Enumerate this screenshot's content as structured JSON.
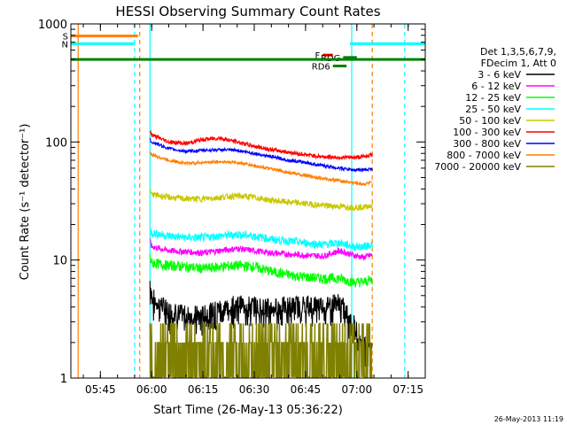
{
  "chart_data": {
    "type": "line",
    "title": "HESSI Observing Summary Count Rates",
    "xlabel": "Start Time (26-May-13 05:36:22)",
    "ylabel": "Count Rate (s⁻¹ detector⁻¹)",
    "yscale": "log",
    "ylim": [
      1,
      1000
    ],
    "xlim": [
      "05:36:22",
      "07:20:00"
    ],
    "x_ticks": [
      "05:45",
      "06:00",
      "06:15",
      "06:30",
      "06:45",
      "07:00",
      "07:15"
    ],
    "y_ticks": [
      "1",
      "10",
      "100",
      "1000"
    ],
    "timestamp": "26-May-2013 11:19",
    "legend": {
      "placement": "right",
      "header": [
        "Det 1,3,5,6,7,9,",
        "FDecim 1, Att 0"
      ]
    },
    "data_start": "05:59:30",
    "data_end": "07:04:30",
    "series": [
      {
        "name": "3 - 6 keV",
        "color": "#000000",
        "times": [
          "05:59:30",
          "06:00",
          "06:05",
          "06:10",
          "06:15",
          "06:20",
          "06:25",
          "06:30",
          "06:35",
          "06:40",
          "06:45",
          "06:50",
          "06:55",
          "06:59",
          "07:02",
          "07:04"
        ],
        "values": [
          6.5,
          5.0,
          3.8,
          3.5,
          3.5,
          4.0,
          4.3,
          4.2,
          4.0,
          4.2,
          4.3,
          4.3,
          4.5,
          3.0,
          2.0,
          2.0
        ]
      },
      {
        "name": "6 - 12 keV",
        "color": "#ff00ff",
        "times": [
          "05:59:30",
          "06:00",
          "06:05",
          "06:10",
          "06:15",
          "06:20",
          "06:25",
          "06:30",
          "06:35",
          "06:40",
          "06:45",
          "06:50",
          "06:55",
          "06:59",
          "07:02",
          "07:04"
        ],
        "values": [
          14.5,
          13.0,
          12.0,
          11.8,
          11.5,
          12.0,
          12.5,
          12.0,
          11.5,
          11.2,
          11.0,
          10.8,
          12.0,
          11.0,
          10.5,
          11.0
        ]
      },
      {
        "name": "12 - 25 keV",
        "color": "#00ff00",
        "times": [
          "05:59:30",
          "06:00",
          "06:05",
          "06:10",
          "06:15",
          "06:20",
          "06:25",
          "06:30",
          "06:35",
          "06:40",
          "06:45",
          "06:50",
          "06:55",
          "06:59",
          "07:02",
          "07:04"
        ],
        "values": [
          10.5,
          9.5,
          9.0,
          8.8,
          8.5,
          8.8,
          9.0,
          8.8,
          8.0,
          7.5,
          7.2,
          7.0,
          7.0,
          6.5,
          6.5,
          6.8
        ]
      },
      {
        "name": "25 - 50 keV",
        "color": "#00ffff",
        "times": [
          "05:59:30",
          "06:00",
          "06:05",
          "06:10",
          "06:15",
          "06:20",
          "06:25",
          "06:30",
          "06:35",
          "06:40",
          "06:45",
          "06:50",
          "06:55",
          "06:59",
          "07:02",
          "07:04"
        ],
        "values": [
          18.0,
          17.0,
          16.0,
          15.5,
          15.5,
          16.0,
          16.5,
          16.0,
          15.0,
          14.5,
          14.0,
          13.5,
          14.0,
          13.0,
          13.0,
          13.5
        ]
      },
      {
        "name": "50 - 100 keV",
        "color": "#c8c800",
        "times": [
          "05:59:30",
          "06:00",
          "06:05",
          "06:10",
          "06:15",
          "06:20",
          "06:25",
          "06:30",
          "06:35",
          "06:40",
          "06:45",
          "06:50",
          "06:55",
          "06:59",
          "07:02",
          "07:04"
        ],
        "values": [
          38,
          36,
          34,
          33,
          33,
          34,
          35,
          34,
          32,
          31,
          30,
          29,
          28.5,
          28,
          28,
          29
        ]
      },
      {
        "name": "100 - 300 keV",
        "color": "#ff0000",
        "times": [
          "05:59:30",
          "06:00",
          "06:05",
          "06:10",
          "06:15",
          "06:20",
          "06:25",
          "06:30",
          "06:35",
          "06:40",
          "06:45",
          "06:50",
          "06:55",
          "06:59",
          "07:02",
          "07:04"
        ],
        "values": [
          122,
          115,
          100,
          97,
          105,
          108,
          100,
          92,
          86,
          82,
          78,
          75,
          74,
          74,
          75,
          78
        ]
      },
      {
        "name": "300 - 800 keV",
        "color": "#0000ff",
        "times": [
          "05:59:30",
          "06:00",
          "06:05",
          "06:10",
          "06:15",
          "06:20",
          "06:25",
          "06:30",
          "06:35",
          "06:40",
          "06:45",
          "06:50",
          "06:55",
          "06:59",
          "07:02",
          "07:04"
        ],
        "values": [
          105,
          100,
          88,
          83,
          85,
          86,
          85,
          80,
          75,
          70,
          67,
          63,
          60,
          58,
          58,
          59
        ]
      },
      {
        "name": "800 - 7000 keV",
        "color": "#ff8000",
        "times": [
          "05:59:30",
          "06:00",
          "06:05",
          "06:10",
          "06:15",
          "06:20",
          "06:25",
          "06:30",
          "06:35",
          "06:40",
          "06:45",
          "06:50",
          "06:55",
          "06:59",
          "07:02",
          "07:04"
        ],
        "values": [
          82,
          78,
          70,
          66,
          67,
          68,
          67,
          63,
          59,
          55,
          52,
          49,
          47,
          45,
          44,
          45
        ]
      },
      {
        "name": "7000 - 20000 keV",
        "color": "#808000",
        "times": [
          "05:59:30",
          "06:00",
          "06:05",
          "06:10",
          "06:15",
          "06:20",
          "06:25",
          "06:30",
          "06:35",
          "06:40",
          "06:45",
          "06:50",
          "06:55",
          "06:59",
          "07:02",
          "07:04"
        ],
        "values": [
          1.9,
          1.9,
          1.95,
          1.9,
          1.95,
          2.0,
          1.95,
          1.9,
          1.95,
          1.9,
          1.9,
          1.9,
          1.9,
          1.9,
          1.95,
          1.9
        ]
      }
    ],
    "flags": [
      {
        "label": "S",
        "color": "#ff8000",
        "start": "05:36:22",
        "end": "05:56:00",
        "value": 790
      },
      {
        "label": "N",
        "color": "#00ffff",
        "start": "05:36:22",
        "end": "05:55:00",
        "value": 680
      },
      {
        "label": "F",
        "color": "#ff0000",
        "start": "06:50:00",
        "end": "06:53:00",
        "value": 545
      },
      {
        "label": "RDG",
        "color": "#008000",
        "start": "06:56:00",
        "end": "07:00:00",
        "value": 520
      },
      {
        "label": "RD6",
        "color": "#008000",
        "start": "06:53:00",
        "end": "06:57:00",
        "value": 440
      },
      {
        "label": "",
        "color": "#008000",
        "start": "05:36:22",
        "end": "07:20:00",
        "value": 500
      },
      {
        "label": "",
        "color": "#00ffff",
        "start": "06:58:00",
        "end": "07:20:00",
        "value": 680
      }
    ],
    "vlines": [
      {
        "time": "05:38:30",
        "color": "#ff8000",
        "style": "solid"
      },
      {
        "time": "05:55:00",
        "color": "#00ffff",
        "style": "dashed"
      },
      {
        "time": "05:56:30",
        "color": "#ff8000",
        "style": "dashed"
      },
      {
        "time": "05:59:30",
        "color": "#00ffff",
        "style": "solid"
      },
      {
        "time": "06:58:30",
        "color": "#00ffff",
        "style": "solid"
      },
      {
        "time": "07:04:30",
        "color": "#ff8000",
        "style": "dashed"
      },
      {
        "time": "07:14:00",
        "color": "#00ffff",
        "style": "dashed"
      }
    ]
  }
}
